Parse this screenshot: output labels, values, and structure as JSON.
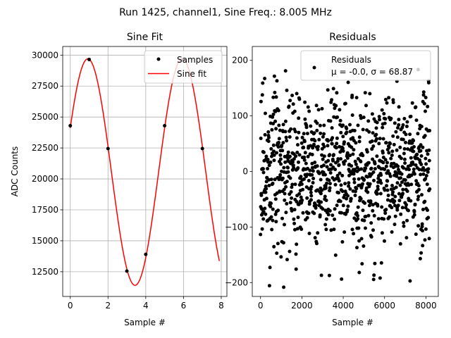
{
  "suptitle": "Run 1425, channel1, Sine Freq.: 8.005 MHz",
  "chart_data": [
    {
      "type": "scatter",
      "title": "Sine Fit",
      "xlabel": "Sample #",
      "ylabel": "ADC Counts",
      "xlim": [
        -0.4,
        8.3
      ],
      "ylim": [
        10500,
        30700
      ],
      "xticks": [
        0,
        2,
        4,
        6,
        8
      ],
      "yticks": [
        12500,
        15000,
        17500,
        20000,
        22500,
        25000,
        27500,
        30000
      ],
      "grid": true,
      "legend": "top-right",
      "series": [
        {
          "name": "Samples",
          "kind": "points",
          "color": "#000000",
          "x": [
            0,
            1,
            2,
            3,
            4,
            5,
            6,
            7
          ],
          "y": [
            24300,
            29650,
            22450,
            12550,
            13900,
            24300,
            29650,
            22450
          ]
        },
        {
          "name": "Sine fit",
          "kind": "line",
          "color": "#ff0000",
          "function": "sine",
          "offset": 20550,
          "amplitude": 9150,
          "period": 5,
          "phase": 0.4,
          "x_range": [
            0,
            7.9
          ]
        }
      ]
    },
    {
      "type": "scatter",
      "title": "Residuals",
      "xlabel": "Sample #",
      "xlim": [
        -400,
        8600
      ],
      "ylim": [
        -225,
        225
      ],
      "xticks": [
        0,
        2000,
        4000,
        6000,
        8000
      ],
      "yticks": [
        -200,
        -100,
        0,
        100,
        200
      ],
      "grid": false,
      "legend": "top-right",
      "series": [
        {
          "name": "Residuals",
          "color": "#000000",
          "n_points": 8192,
          "mean": -0.0,
          "std": 68.87,
          "min": -212,
          "max": 190
        }
      ],
      "legend_stats": "μ = -0.0, σ = 68.87"
    }
  ]
}
